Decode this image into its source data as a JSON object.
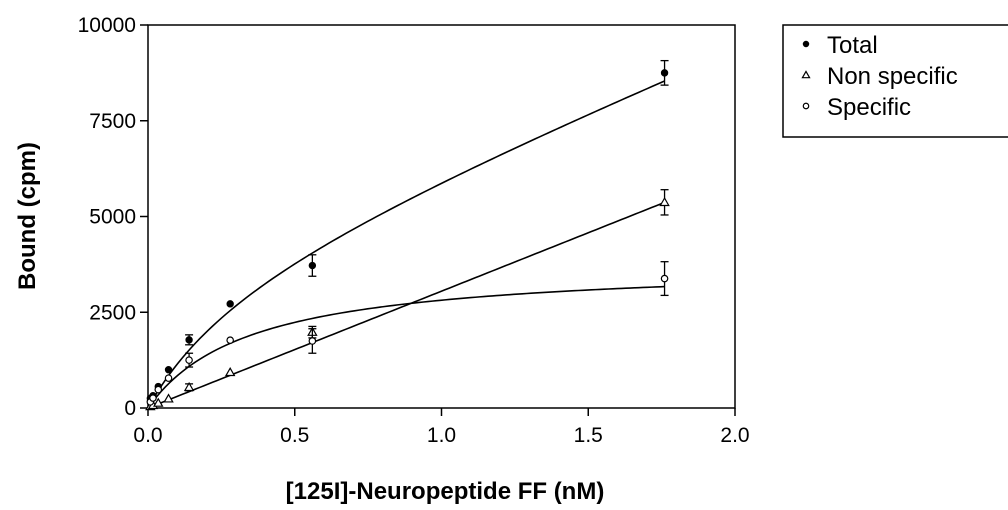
{
  "chart_data": {
    "type": "scatter",
    "xlabel": "[125I]-Neuropeptide FF (nM)",
    "ylabel": "Bound (cpm)",
    "xlim": [
      0.0,
      2.0
    ],
    "ylim": [
      0,
      10000
    ],
    "x_ticks": [
      "0.0",
      "0.5",
      "1.0",
      "1.5",
      "2.0"
    ],
    "y_ticks": [
      "0",
      "2500",
      "5000",
      "7500",
      "10000"
    ],
    "grid": false,
    "legend_position": "right",
    "series": [
      {
        "name": "Total",
        "marker": "filled-circle",
        "color": "#000000",
        "points": [
          {
            "x": 0.008,
            "y": 250,
            "err": 0
          },
          {
            "x": 0.017,
            "y": 320,
            "err": 0
          },
          {
            "x": 0.035,
            "y": 560,
            "err": 0
          },
          {
            "x": 0.07,
            "y": 1000,
            "err": 0
          },
          {
            "x": 0.14,
            "y": 1780,
            "err": 130
          },
          {
            "x": 0.28,
            "y": 2720,
            "err": 0
          },
          {
            "x": 0.56,
            "y": 3720,
            "err": 280
          },
          {
            "x": 1.76,
            "y": 8750,
            "err": 320
          }
        ],
        "fit": {
          "model": "one-site-plus-linear",
          "Bmax": 3800,
          "Kd": 0.35,
          "slope": 3050
        }
      },
      {
        "name": "Non specific",
        "marker": "open-triangle",
        "color": "#000000",
        "points": [
          {
            "x": 0.008,
            "y": 40,
            "err": 0
          },
          {
            "x": 0.017,
            "y": 70,
            "err": 0
          },
          {
            "x": 0.035,
            "y": 130,
            "err": 0
          },
          {
            "x": 0.07,
            "y": 240,
            "err": 0
          },
          {
            "x": 0.14,
            "y": 540,
            "err": 90
          },
          {
            "x": 0.28,
            "y": 930,
            "err": 0
          },
          {
            "x": 0.56,
            "y": 1980,
            "err": 150
          },
          {
            "x": 1.76,
            "y": 5370,
            "err": 330
          }
        ],
        "fit": {
          "model": "linear",
          "slope": 3050
        }
      },
      {
        "name": "Specific",
        "marker": "open-circle",
        "color": "#000000",
        "points": [
          {
            "x": 0.008,
            "y": 160,
            "err": 0
          },
          {
            "x": 0.017,
            "y": 260,
            "err": 0
          },
          {
            "x": 0.035,
            "y": 480,
            "err": 0
          },
          {
            "x": 0.07,
            "y": 780,
            "err": 0
          },
          {
            "x": 0.14,
            "y": 1250,
            "err": 180
          },
          {
            "x": 0.28,
            "y": 1770,
            "err": 0
          },
          {
            "x": 0.56,
            "y": 1750,
            "err": 320
          },
          {
            "x": 1.76,
            "y": 3380,
            "err": 440
          }
        ],
        "fit": {
          "model": "one-site",
          "Bmax": 3800,
          "Kd": 0.35
        }
      }
    ]
  }
}
